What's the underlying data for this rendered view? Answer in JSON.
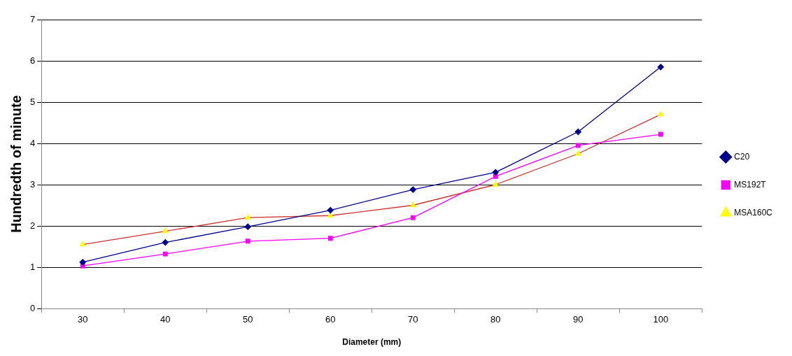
{
  "chart_data": {
    "type": "line",
    "xlabel": "Diameter (mm)",
    "ylabel": "Hundredth of minute",
    "categories": [
      "30",
      "40",
      "50",
      "60",
      "70",
      "80",
      "90",
      "100"
    ],
    "series": [
      {
        "name": "C20",
        "color": "#00008b",
        "marker": "diamond",
        "values": [
          1.12,
          1.6,
          1.98,
          2.38,
          2.88,
          3.3,
          4.28,
          5.85
        ]
      },
      {
        "name": "MS192T",
        "color": "#ff00ff",
        "marker": "square",
        "values": [
          1.03,
          1.32,
          1.63,
          1.7,
          2.2,
          3.2,
          3.95,
          4.22
        ]
      },
      {
        "name": "MSA160C",
        "color": "#cc3333",
        "marker": "triangle",
        "colors": [
          "#ffff00",
          "#ffff00",
          "#ffff00",
          "#ffff00",
          "#ffff00",
          "#ffff00",
          "#ffff00",
          "#ffff00"
        ],
        "values": [
          1.55,
          1.87,
          2.2,
          2.25,
          2.5,
          3.0,
          3.75,
          4.7
        ]
      }
    ],
    "ylim": [
      0,
      7
    ],
    "yticks": [
      0,
      1,
      2,
      3,
      4,
      5,
      6,
      7
    ],
    "grid": "y",
    "legend": "right",
    "line_style": "solid"
  }
}
